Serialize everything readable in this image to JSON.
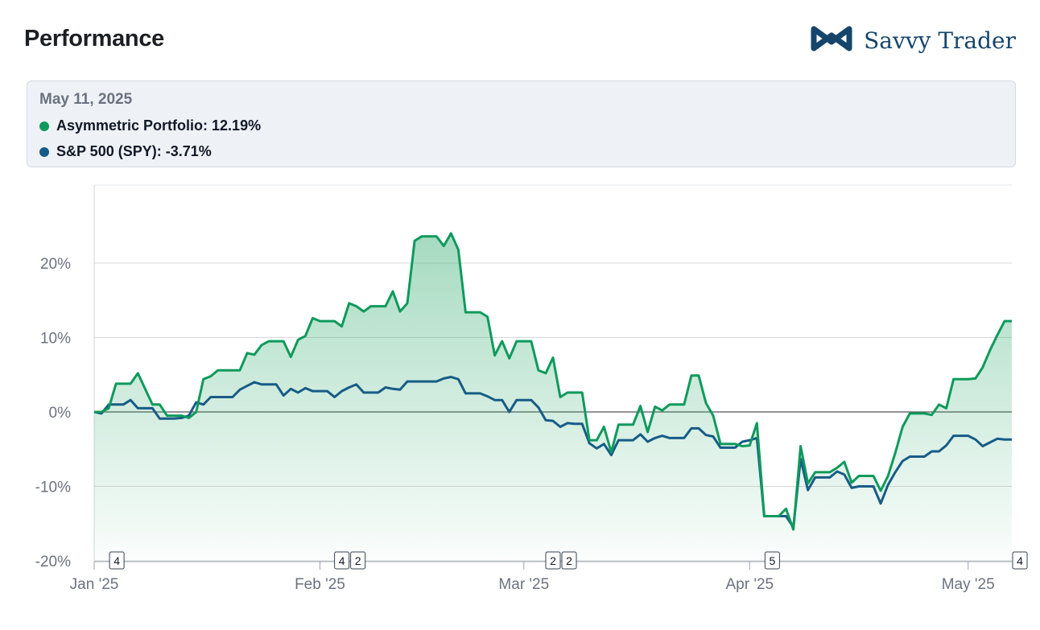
{
  "header": {
    "title": "Performance",
    "brand": "Savvy Trader",
    "brand_icon": "infinity-logo-icon"
  },
  "tooltip": {
    "date": "May 11, 2025",
    "rows": [
      {
        "label": "Asymmetric Portfolio: 12.19%",
        "color": "#0e9a5c"
      },
      {
        "label": "S&P 500 (SPY): -3.71%",
        "color": "#175c86"
      }
    ]
  },
  "colors": {
    "portfolio": "#0e9a5c",
    "spy": "#175c86",
    "fill": "#2aa86a",
    "grid": "#d9d9d9",
    "zero": "#555555"
  },
  "chart_data": {
    "type": "line",
    "xlabel": "",
    "ylabel": "",
    "ylim": [
      -20,
      30
    ],
    "yticks": [
      20,
      10,
      0,
      -10,
      -20
    ],
    "ytick_labels": [
      "20%",
      "10%",
      "0%",
      "-10%",
      "-20%"
    ],
    "xticks": [
      {
        "x": 0,
        "label": "Jan '25"
      },
      {
        "x": 31,
        "label": "Feb '25"
      },
      {
        "x": 59,
        "label": "Mar '25"
      },
      {
        "x": 90,
        "label": "Apr '25"
      },
      {
        "x": 120,
        "label": "May '25"
      }
    ],
    "grid": true,
    "event_markers": [
      {
        "x": 2,
        "labels": [
          "4"
        ]
      },
      {
        "x": 34,
        "labels": [
          "4",
          "2"
        ]
      },
      {
        "x": 63,
        "labels": [
          "2",
          "2"
        ]
      },
      {
        "x": 92,
        "labels": [
          "5"
        ]
      },
      {
        "x": 126,
        "labels": [
          "4"
        ]
      }
    ],
    "series": [
      {
        "name": "Asymmetric Portfolio",
        "points": [
          [
            0,
            0
          ],
          [
            1,
            0
          ],
          [
            2,
            0.5
          ],
          [
            3,
            3.8
          ],
          [
            5,
            3.8
          ],
          [
            6,
            5.2
          ],
          [
            8,
            1
          ],
          [
            9,
            1
          ],
          [
            10,
            -0.5
          ],
          [
            12,
            -0.5
          ],
          [
            13,
            -0.8
          ],
          [
            14,
            0
          ],
          [
            15,
            4.4
          ],
          [
            16,
            4.8
          ],
          [
            17,
            5.6
          ],
          [
            20,
            5.6
          ],
          [
            21,
            7.9
          ],
          [
            22,
            7.7
          ],
          [
            23,
            9
          ],
          [
            24,
            9.5
          ],
          [
            26,
            9.5
          ],
          [
            27,
            7.4
          ],
          [
            28,
            9.7
          ],
          [
            29,
            10.2
          ],
          [
            30,
            12.6
          ],
          [
            31,
            12.2
          ],
          [
            33,
            12.2
          ],
          [
            34,
            11.5
          ],
          [
            35,
            14.6
          ],
          [
            36,
            14.2
          ],
          [
            37,
            13.5
          ],
          [
            38,
            14.2
          ],
          [
            40,
            14.2
          ],
          [
            41,
            16.2
          ],
          [
            42,
            13.5
          ],
          [
            43,
            14.6
          ],
          [
            44,
            23
          ],
          [
            45,
            23.6
          ],
          [
            47,
            23.6
          ],
          [
            48,
            22.3
          ],
          [
            49,
            24
          ],
          [
            50,
            21.8
          ],
          [
            51,
            13.4
          ],
          [
            53,
            13.4
          ],
          [
            54,
            12.8
          ],
          [
            55,
            7.6
          ],
          [
            56,
            9.5
          ],
          [
            57,
            7.2
          ],
          [
            58,
            9.5
          ],
          [
            60,
            9.5
          ],
          [
            61,
            5.6
          ],
          [
            62,
            5.2
          ],
          [
            63,
            7.3
          ],
          [
            64,
            2
          ],
          [
            65,
            2.6
          ],
          [
            67,
            2.6
          ],
          [
            68,
            -3.8
          ],
          [
            69,
            -3.8
          ],
          [
            70,
            -2
          ],
          [
            71,
            -5.4
          ],
          [
            72,
            -1.7
          ],
          [
            74,
            -1.7
          ],
          [
            75,
            0.8
          ],
          [
            76,
            -2.7
          ],
          [
            77,
            0.7
          ],
          [
            78,
            0.2
          ],
          [
            79,
            1
          ],
          [
            81,
            1
          ],
          [
            82,
            4.9
          ],
          [
            83,
            4.9
          ],
          [
            84,
            1.2
          ],
          [
            85,
            -0.5
          ],
          [
            86,
            -4.3
          ],
          [
            88,
            -4.3
          ],
          [
            89,
            -4.6
          ],
          [
            90,
            -4.5
          ],
          [
            91,
            -1.5
          ],
          [
            92,
            -14
          ],
          [
            94,
            -14
          ],
          [
            95,
            -13
          ],
          [
            96,
            -15.8
          ],
          [
            97,
            -4.6
          ],
          [
            98,
            -9.6
          ],
          [
            99,
            -8.1
          ],
          [
            101,
            -8.1
          ],
          [
            102,
            -7.5
          ],
          [
            103,
            -6.7
          ],
          [
            104,
            -9.5
          ],
          [
            105,
            -8.6
          ],
          [
            107,
            -8.6
          ],
          [
            108,
            -10.6
          ],
          [
            109,
            -8.6
          ],
          [
            110,
            -5.5
          ],
          [
            111,
            -2
          ],
          [
            112,
            -0.2
          ],
          [
            114,
            -0.2
          ],
          [
            115,
            -0.4
          ],
          [
            116,
            1
          ],
          [
            117,
            0.5
          ],
          [
            118,
            4.4
          ],
          [
            120,
            4.4
          ],
          [
            121,
            4.5
          ],
          [
            122,
            6
          ],
          [
            123,
            8.3
          ],
          [
            124,
            10.3
          ],
          [
            125,
            12.2
          ],
          [
            126,
            12.2
          ]
        ]
      },
      {
        "name": "S&P 500 (SPY)",
        "points": [
          [
            0,
            0
          ],
          [
            1,
            -0.2
          ],
          [
            2,
            1
          ],
          [
            4,
            1
          ],
          [
            5,
            1.6
          ],
          [
            6,
            0.5
          ],
          [
            8,
            0.5
          ],
          [
            9,
            -0.9
          ],
          [
            11,
            -0.9
          ],
          [
            12,
            -0.8
          ],
          [
            13,
            -0.5
          ],
          [
            14,
            1.3
          ],
          [
            15,
            1
          ],
          [
            16,
            2
          ],
          [
            19,
            2
          ],
          [
            20,
            3
          ],
          [
            21,
            3.5
          ],
          [
            22,
            4
          ],
          [
            23,
            3.7
          ],
          [
            25,
            3.7
          ],
          [
            26,
            2.2
          ],
          [
            27,
            3.1
          ],
          [
            28,
            2.6
          ],
          [
            29,
            3.2
          ],
          [
            30,
            2.8
          ],
          [
            32,
            2.8
          ],
          [
            33,
            2
          ],
          [
            34,
            2.8
          ],
          [
            35,
            3.3
          ],
          [
            36,
            3.7
          ],
          [
            37,
            2.6
          ],
          [
            39,
            2.6
          ],
          [
            40,
            3.3
          ],
          [
            41,
            3.1
          ],
          [
            42,
            3
          ],
          [
            43,
            4.1
          ],
          [
            47,
            4.1
          ],
          [
            48,
            4.5
          ],
          [
            49,
            4.7
          ],
          [
            50,
            4.4
          ],
          [
            51,
            2.5
          ],
          [
            53,
            2.5
          ],
          [
            54,
            2.1
          ],
          [
            55,
            1.6
          ],
          [
            56,
            1.6
          ],
          [
            57,
            0
          ],
          [
            58,
            1.6
          ],
          [
            60,
            1.6
          ],
          [
            61,
            0.6
          ],
          [
            62,
            -1.1
          ],
          [
            63,
            -1.2
          ],
          [
            64,
            -2
          ],
          [
            65,
            -1.5
          ],
          [
            66,
            -1.6
          ],
          [
            67,
            -1.6
          ],
          [
            68,
            -4.2
          ],
          [
            69,
            -4.9
          ],
          [
            70,
            -4.3
          ],
          [
            71,
            -5.8
          ],
          [
            72,
            -3.8
          ],
          [
            74,
            -3.8
          ],
          [
            75,
            -3
          ],
          [
            76,
            -4
          ],
          [
            77,
            -3.5
          ],
          [
            78,
            -3.2
          ],
          [
            79,
            -3.5
          ],
          [
            81,
            -3.5
          ],
          [
            82,
            -2.2
          ],
          [
            83,
            -2.2
          ],
          [
            84,
            -3.1
          ],
          [
            85,
            -3.3
          ],
          [
            86,
            -4.8
          ],
          [
            88,
            -4.8
          ],
          [
            89,
            -4
          ],
          [
            90,
            -3.8
          ],
          [
            91,
            -3.5
          ],
          [
            92,
            -14
          ],
          [
            94,
            -14
          ],
          [
            95,
            -14
          ],
          [
            96,
            -15.5
          ],
          [
            97,
            -6.3
          ],
          [
            98,
            -10.5
          ],
          [
            99,
            -8.8
          ],
          [
            101,
            -8.8
          ],
          [
            102,
            -8
          ],
          [
            103,
            -8.4
          ],
          [
            104,
            -10.2
          ],
          [
            105,
            -10
          ],
          [
            107,
            -10
          ],
          [
            108,
            -12.3
          ],
          [
            109,
            -9.8
          ],
          [
            110,
            -8.1
          ],
          [
            111,
            -6.6
          ],
          [
            112,
            -6
          ],
          [
            114,
            -6
          ],
          [
            115,
            -5.3
          ],
          [
            116,
            -5.3
          ],
          [
            117,
            -4.5
          ],
          [
            118,
            -3.2
          ],
          [
            120,
            -3.2
          ],
          [
            121,
            -3.7
          ],
          [
            122,
            -4.6
          ],
          [
            123,
            -4.1
          ],
          [
            124,
            -3.6
          ],
          [
            125,
            -3.7
          ],
          [
            126,
            -3.7
          ]
        ]
      }
    ]
  }
}
